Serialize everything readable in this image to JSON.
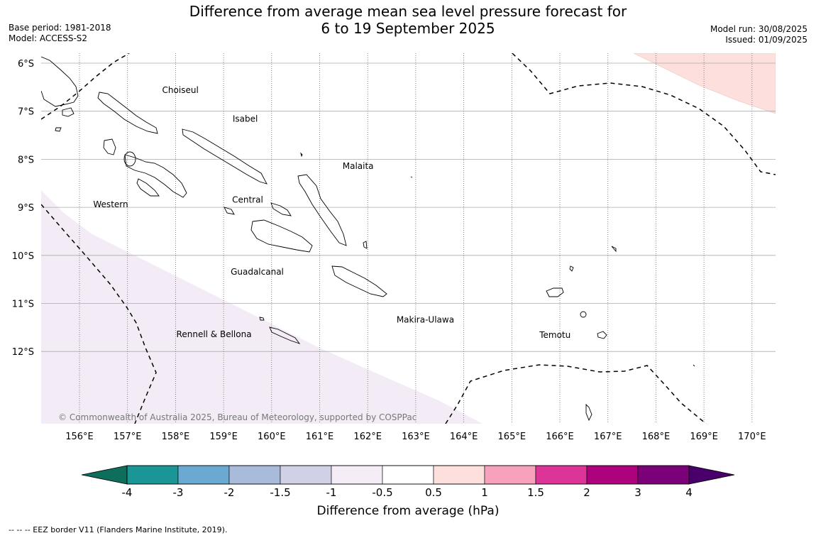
{
  "title": {
    "line1": "Difference from average mean sea level pressure forecast for",
    "line2": "6 to 19 September 2025"
  },
  "meta_left": {
    "base_period": "Base period: 1981-2018",
    "model": "Model: ACCESS-S2"
  },
  "meta_right": {
    "model_run": "Model run: 30/08/2025",
    "issued": "Issued: 01/09/2025"
  },
  "map": {
    "lat_labels": [
      "6°S",
      "7°S",
      "8°S",
      "9°S",
      "10°S",
      "11°S",
      "12°S"
    ],
    "lon_labels": [
      "156°E",
      "157°E",
      "158°E",
      "159°E",
      "160°E",
      "161°E",
      "162°E",
      "163°E",
      "164°E",
      "165°E",
      "166°E",
      "167°E",
      "168°E",
      "169°E",
      "170°E"
    ],
    "regions": [
      {
        "name": "Choiseul",
        "lon": 158.1,
        "lat": 6.62
      },
      {
        "name": "Isabel",
        "lon": 159.45,
        "lat": 7.22
      },
      {
        "name": "Malaita",
        "lon": 161.8,
        "lat": 8.2
      },
      {
        "name": "Western",
        "lon": 156.65,
        "lat": 9.0
      },
      {
        "name": "Central",
        "lon": 159.5,
        "lat": 8.9
      },
      {
        "name": "Guadalcanal",
        "lon": 159.7,
        "lat": 10.4
      },
      {
        "name": "Makira-Ulawa",
        "lon": 163.2,
        "lat": 11.4
      },
      {
        "name": "Rennell & Bellona",
        "lon": 158.8,
        "lat": 11.7
      },
      {
        "name": "Temotu",
        "lon": 165.9,
        "lat": 11.72
      }
    ],
    "copyright": "© Commonwealth of Australia 2025, Bureau of Meteorology, supported by COSPPac",
    "anomaly_colors": {
      "negative_light": "#f3ecf6",
      "positive_light": "#fde0de"
    }
  },
  "colorbar": {
    "label": "Difference from average (hPa)",
    "ticks": [
      "-4",
      "-3",
      "-2",
      "-1.5",
      "-1",
      "-0.5",
      "0.5",
      "1",
      "1.5",
      "2",
      "3",
      "4"
    ],
    "colors": [
      "#1a9696",
      "#6aa9d1",
      "#a8bbdb",
      "#d0d1e6",
      "#f4edf7",
      "#ffffff",
      "#fde0de",
      "#f8a1bd",
      "#dd3497",
      "#ae017e",
      "#7a0177"
    ],
    "extend_low": "#0e6e5c",
    "extend_high": "#49006a"
  },
  "footnote": "--  --  -- EEZ border V11 (Flanders Marine Institute, 2019)."
}
